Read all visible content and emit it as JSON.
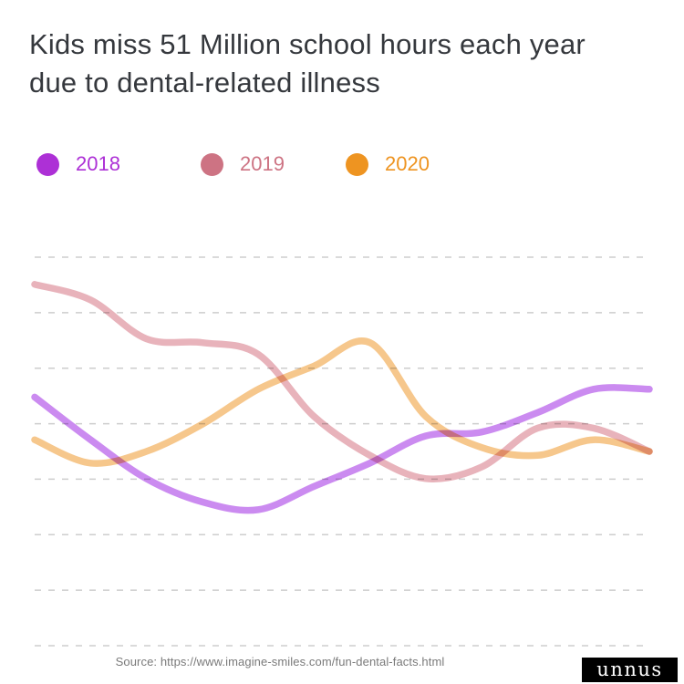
{
  "header": {
    "title_line1": "Kids miss 51 Million school hours each year",
    "title_line2": "due to dental-related illness"
  },
  "legend": [
    {
      "label": "2018",
      "color": "#ad30d6"
    },
    {
      "label": "2019",
      "color": "#cd7383"
    },
    {
      "label": "2020",
      "color": "#ee9421"
    }
  ],
  "chart_data": {
    "type": "line",
    "title": "Kids miss 51 Million school hours each year due to dental-related illness",
    "xlabel": "",
    "ylabel": "",
    "axis_tick_labels": "none visible",
    "ylim": [
      0,
      100
    ],
    "grid": "horizontal dashed, 8 lines",
    "grid_color": "#cdcdcd",
    "legend_position": "top-left",
    "num_points": 12,
    "note": "no axis labels shown; values estimated as percent of plot height from smoothed curves",
    "series": [
      {
        "name": "2018",
        "line_color": "#cb8bf0",
        "values": [
          64,
          53,
          43,
          37,
          35,
          41,
          47,
          54,
          55,
          60,
          66,
          66
        ]
      },
      {
        "name": "2019",
        "line_color": "#e8b3bb",
        "values": [
          93,
          89,
          79,
          78,
          75,
          59,
          49,
          43,
          46,
          56,
          56,
          50
        ]
      },
      {
        "name": "2020",
        "line_color": "#f6c78c",
        "values": [
          53,
          47,
          50,
          57,
          66,
          72,
          78,
          59,
          51,
          49,
          53,
          50
        ]
      }
    ]
  },
  "footer": {
    "source": "Source: https://www.imagine-smiles.com/fun-dental-facts.html",
    "logo_text": "unnus"
  }
}
